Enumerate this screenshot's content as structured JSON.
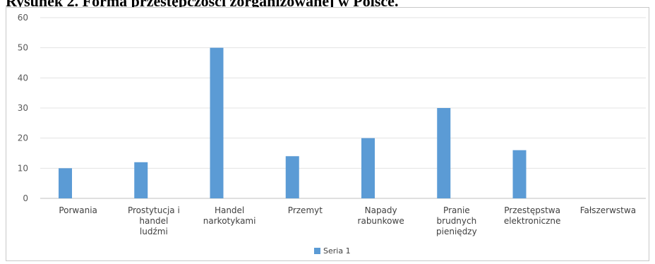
{
  "caption": "Rysunek 2. Forma przestępczości zorganizowanej w Polsce.",
  "chart_data": {
    "type": "bar",
    "title": "",
    "xlabel": "",
    "ylabel": "",
    "ylim": [
      0,
      60
    ],
    "yticks": [
      0,
      10,
      20,
      30,
      40,
      50,
      60
    ],
    "grid": true,
    "legend_position": "bottom",
    "categories": [
      [
        "Porwania"
      ],
      [
        "Prostytucja i",
        "handel",
        "ludźmi"
      ],
      [
        "Handel",
        "narkotykami"
      ],
      [
        "Przemyt"
      ],
      [
        "Napady",
        "rabunkowe"
      ],
      [
        "Pranie",
        "brudnych",
        "pieniędzy"
      ],
      [
        "Przestępstwa",
        "elektroniczne"
      ],
      [
        "Fałszerwstwa"
      ]
    ],
    "series": [
      {
        "name": "Seria 1",
        "color": "#5b9bd5",
        "values": [
          10,
          12,
          50,
          14,
          20,
          30,
          16,
          0
        ]
      }
    ]
  }
}
